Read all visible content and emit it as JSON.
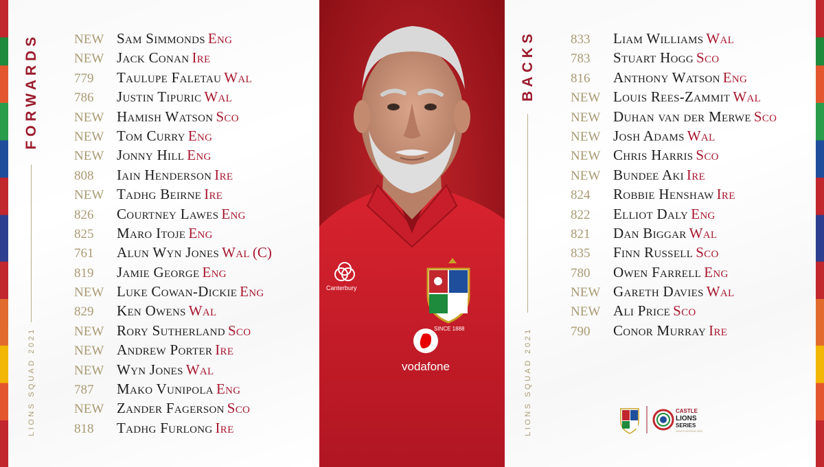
{
  "colors": {
    "accent": "#a8172e",
    "gold": "#a99a73",
    "photo_bg": "#a3151c"
  },
  "forwards": {
    "title": "FORWARDS",
    "subtitle": "LIONS SQUAD 2021",
    "players": [
      {
        "num": "NEW",
        "name": "Sam Simmonds",
        "nation": "Eng"
      },
      {
        "num": "NEW",
        "name": "Jack Conan",
        "nation": "Ire"
      },
      {
        "num": "779",
        "name": "Taulupe Faletau",
        "nation": "Wal"
      },
      {
        "num": "786",
        "name": "Justin Tipuric",
        "nation": "Wal"
      },
      {
        "num": "NEW",
        "name": "Hamish Watson",
        "nation": "Sco"
      },
      {
        "num": "NEW",
        "name": "Tom Curry",
        "nation": "Eng"
      },
      {
        "num": "NEW",
        "name": "Jonny Hill",
        "nation": "Eng"
      },
      {
        "num": "808",
        "name": "Iain Henderson",
        "nation": "Ire"
      },
      {
        "num": "NEW",
        "name": "Tadhg Beirne",
        "nation": "Ire"
      },
      {
        "num": "826",
        "name": "Courtney Lawes",
        "nation": "Eng"
      },
      {
        "num": "825",
        "name": "Maro Itoje",
        "nation": "Eng"
      },
      {
        "num": "761",
        "name": "Alun Wyn Jones",
        "nation": "Wal",
        "captain": "(C)"
      },
      {
        "num": "819",
        "name": "Jamie George",
        "nation": "Eng"
      },
      {
        "num": "NEW",
        "name": "Luke Cowan-Dickie",
        "nation": "Eng"
      },
      {
        "num": "829",
        "name": "Ken Owens",
        "nation": "Wal"
      },
      {
        "num": "NEW",
        "name": "Rory Sutherland",
        "nation": "Sco"
      },
      {
        "num": "NEW",
        "name": "Andrew Porter",
        "nation": "Ire"
      },
      {
        "num": "NEW",
        "name": "Wyn Jones",
        "nation": "Wal"
      },
      {
        "num": "787",
        "name": "Mako Vunipola",
        "nation": "Eng"
      },
      {
        "num": "NEW",
        "name": "Zander Fagerson",
        "nation": "Sco"
      },
      {
        "num": "818",
        "name": "Tadhg Furlong",
        "nation": "Ire"
      }
    ]
  },
  "backs": {
    "title": "BACKS",
    "subtitle": "LIONS SQUAD 2021",
    "players": [
      {
        "num": "833",
        "name": "Liam Williams",
        "nation": "Wal"
      },
      {
        "num": "783",
        "name": "Stuart Hogg",
        "nation": "Sco"
      },
      {
        "num": "816",
        "name": "Anthony Watson",
        "nation": "Eng"
      },
      {
        "num": "NEW",
        "name": "Louis Rees-Zammit",
        "nation": "Wal"
      },
      {
        "num": "NEW",
        "name": "Duhan van der Merwe",
        "nation": "Sco"
      },
      {
        "num": "NEW",
        "name": "Josh Adams",
        "nation": "Wal"
      },
      {
        "num": "NEW",
        "name": "Chris Harris",
        "nation": "Sco"
      },
      {
        "num": "NEW",
        "name": "Bundee Aki",
        "nation": "Ire"
      },
      {
        "num": "824",
        "name": "Robbie Henshaw",
        "nation": "Ire"
      },
      {
        "num": "822",
        "name": "Elliot Daly",
        "nation": "Eng"
      },
      {
        "num": "821",
        "name": "Dan Biggar",
        "nation": "Wal"
      },
      {
        "num": "835",
        "name": "Finn Russell",
        "nation": "Sco"
      },
      {
        "num": "780",
        "name": "Owen Farrell",
        "nation": "Eng"
      },
      {
        "num": "NEW",
        "name": "Gareth Davies",
        "nation": "Wal"
      },
      {
        "num": "NEW",
        "name": "Ali Price",
        "nation": "Sco"
      },
      {
        "num": "790",
        "name": "Conor Murray",
        "nation": "Ire"
      }
    ]
  },
  "photo": {
    "shirt_brand": "Canterbury",
    "sponsor": "vodafone",
    "crest_motto": "SINCE 1888"
  },
  "logos": {
    "lions_crest": "lions-crest",
    "series_top": "CASTLE",
    "series_mid": "LIONS",
    "series_bottom": "SERIES",
    "series_sub": "SOUTH AFRICA 2021"
  }
}
